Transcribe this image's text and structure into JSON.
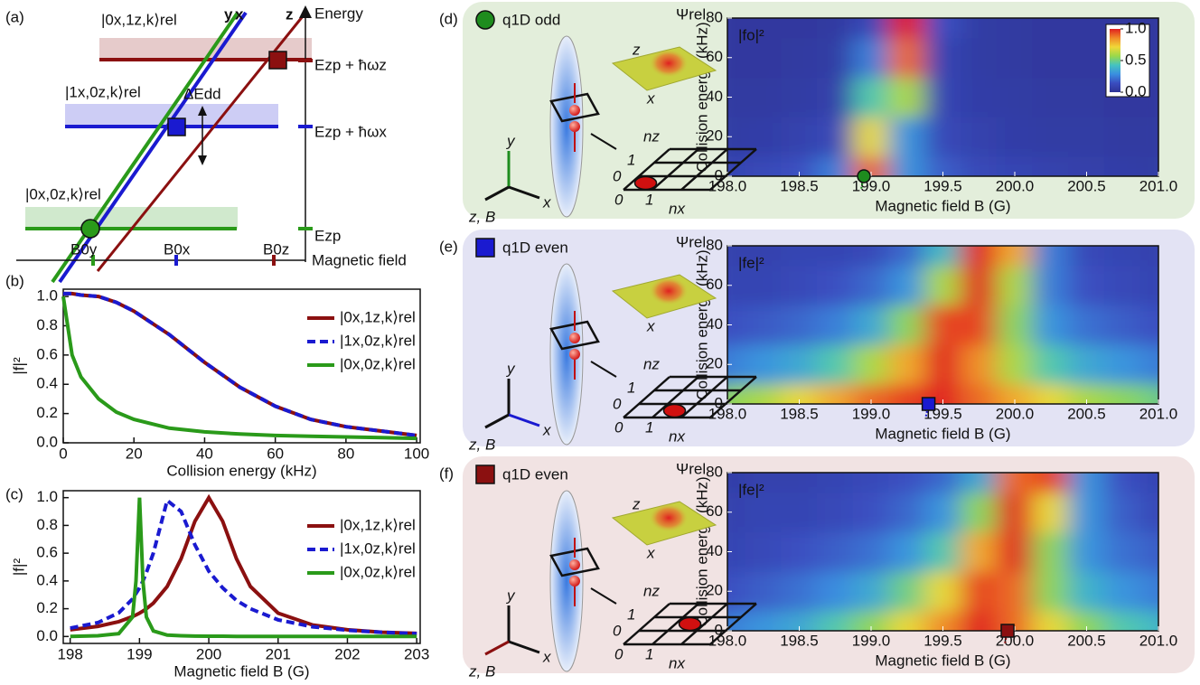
{
  "panel_a": {
    "label": "(a)",
    "axis_y": "Energy",
    "axis_x": "Magnetic field",
    "line_labels": [
      "y",
      "x",
      "z"
    ],
    "states": [
      "|0x,1z,k⟩rel",
      "|1x,0z,k⟩rel",
      "|0x,0z,k⟩rel"
    ],
    "levels": [
      "Ezp + ħωz",
      "Ezp + ħωx",
      "Ezp"
    ],
    "gap": "ΔEdd",
    "fields": [
      "B0y",
      "B0x",
      "B0z"
    ]
  },
  "chart_data": [
    {
      "type": "line",
      "panel": "(b)",
      "xlabel": "Collision energy (kHz)",
      "ylabel": "|f|²",
      "x": [
        0,
        2.5,
        5,
        10,
        15,
        20,
        30,
        40,
        50,
        60,
        70,
        80,
        90,
        100
      ],
      "series": [
        {
          "name": "|0x,1z,k⟩rel",
          "color": "#8b1010",
          "style": "solid",
          "values": [
            1.02,
            1.02,
            1.01,
            1.0,
            0.96,
            0.9,
            0.74,
            0.55,
            0.38,
            0.25,
            0.16,
            0.11,
            0.08,
            0.05
          ]
        },
        {
          "name": "|1x,0z,k⟩rel",
          "color": "#1a1ad0",
          "style": "dashed",
          "values": [
            1.02,
            1.02,
            1.01,
            1.0,
            0.96,
            0.9,
            0.74,
            0.55,
            0.38,
            0.25,
            0.16,
            0.11,
            0.08,
            0.05
          ]
        },
        {
          "name": "|0x,0z,k⟩rel",
          "color": "#2a9a1a",
          "style": "solid",
          "values": [
            1.0,
            0.6,
            0.45,
            0.3,
            0.21,
            0.16,
            0.1,
            0.075,
            0.06,
            0.05,
            0.045,
            0.04,
            0.035,
            0.03
          ]
        }
      ],
      "xlim": [
        0,
        101
      ],
      "xticks": [
        0,
        20,
        40,
        60,
        80,
        100
      ],
      "ylim": [
        0,
        1.05
      ],
      "yticks": [
        {
          "value": 0,
          "label": "0.0"
        },
        {
          "value": 0.2,
          "label": "0.2"
        },
        {
          "value": 0.4,
          "label": "0.4"
        },
        {
          "value": 0.6,
          "label": "0.6"
        },
        {
          "value": 0.8,
          "label": "0.8"
        },
        {
          "value": 1,
          "label": "1.0"
        }
      ]
    },
    {
      "type": "line",
      "panel": "(c)",
      "xlabel": "Magnetic field B (G)",
      "ylabel": "|f|²",
      "x": [
        198,
        198.4,
        198.7,
        198.9,
        198.95,
        199,
        199.05,
        199.1,
        199.2,
        199.4,
        199.6,
        199.8,
        200,
        200.2,
        200.4,
        200.6,
        201,
        201.5,
        202,
        202.5,
        203
      ],
      "series": [
        {
          "name": "|0x,1z,k⟩rel",
          "color": "#8b1010",
          "style": "solid",
          "values": [
            0.048,
            0.073,
            0.107,
            0.143,
            0.155,
            0.168,
            0.183,
            0.2,
            0.24,
            0.36,
            0.56,
            0.83,
            1.0,
            0.83,
            0.56,
            0.36,
            0.168,
            0.083,
            0.048,
            0.031,
            0.022
          ]
        },
        {
          "name": "|1x,0z,k⟩rel",
          "color": "#1a1ad0",
          "style": "dashed",
          "values": [
            0.06,
            0.1,
            0.17,
            0.27,
            0.31,
            0.35,
            0.4,
            0.46,
            0.6,
            0.98,
            0.9,
            0.66,
            0.47,
            0.35,
            0.26,
            0.2,
            0.12,
            0.07,
            0.045,
            0.03,
            0.02
          ]
        },
        {
          "name": "|0x,0z,k⟩rel",
          "color": "#2a9a1a",
          "style": "solid",
          "values": [
            0.0,
            0.005,
            0.02,
            0.14,
            0.4,
            1.0,
            0.4,
            0.14,
            0.04,
            0.01,
            0.005,
            0.003,
            0.002,
            0.002,
            0.001,
            0.001,
            0.0,
            0.0,
            0.0,
            0.0,
            0.0
          ]
        }
      ],
      "xlim": [
        197.9,
        203.05
      ],
      "xticks": [
        198,
        199,
        200,
        201,
        202,
        203
      ],
      "ylim": [
        -0.05,
        1.05
      ],
      "yticks": [
        {
          "value": 0,
          "label": "0.0"
        },
        {
          "value": 0.2,
          "label": "0.2"
        },
        {
          "value": 0.4,
          "label": "0.4"
        },
        {
          "value": 0.6,
          "label": "0.6"
        },
        {
          "value": 0.8,
          "label": "0.8"
        },
        {
          "value": 1,
          "label": "1.0"
        }
      ]
    },
    {
      "type": "heatmap",
      "panel": "(d)",
      "title": "q1D odd",
      "label": "|fo|²",
      "xlabel": "Magnetic field B (G)",
      "ylabel": "Collision energy (kHz)",
      "x": [
        198,
        198.25,
        198.5,
        198.75,
        199,
        199.25,
        199.5,
        199.75,
        200,
        200.25,
        200.5,
        200.75,
        201
      ],
      "y": [
        0,
        20,
        40,
        60,
        80
      ],
      "values": [
        [
          0.1,
          0.12,
          0.15,
          0.25,
          0.9,
          0.3,
          0.18,
          0.12,
          0.1,
          0.08,
          0.07,
          0.06,
          0.05
        ],
        [
          0.05,
          0.06,
          0.08,
          0.12,
          0.7,
          0.3,
          0.12,
          0.08,
          0.06,
          0.05,
          0.05,
          0.04,
          0.04
        ],
        [
          0.04,
          0.04,
          0.05,
          0.07,
          0.45,
          0.6,
          0.1,
          0.06,
          0.05,
          0.04,
          0.04,
          0.03,
          0.03
        ],
        [
          0.03,
          0.03,
          0.04,
          0.05,
          0.25,
          0.9,
          0.1,
          0.05,
          0.04,
          0.03,
          0.03,
          0.03,
          0.03
        ],
        [
          0.03,
          0.03,
          0.03,
          0.04,
          0.12,
          1.0,
          0.15,
          0.05,
          0.04,
          0.03,
          0.03,
          0.03,
          0.03
        ]
      ],
      "xlim": [
        198,
        201
      ],
      "ylim": [
        0,
        80
      ],
      "xticks": [
        {
          "value": 198,
          "label": "198.0"
        },
        {
          "value": 198.5,
          "label": "198.5"
        },
        {
          "value": 199,
          "label": "199.0"
        },
        {
          "value": 199.5,
          "label": "199.5"
        },
        {
          "value": 200,
          "label": "200.0"
        },
        {
          "value": 200.5,
          "label": "200.5"
        },
        {
          "value": 201,
          "label": "201.0"
        }
      ],
      "yticks": [
        0,
        20,
        40,
        60,
        80
      ],
      "colormap": [
        "#2e3396",
        "#3a4dbf",
        "#3a8fe0",
        "#45c4c0",
        "#9ad84a",
        "#f0d838",
        "#f08a28",
        "#e02020"
      ],
      "colorbar_ticks": [
        {
          "value": 0,
          "label": "0.0"
        },
        {
          "value": 0.5,
          "label": "0.5"
        },
        {
          "value": 1,
          "label": "1.0"
        }
      ],
      "marker": {
        "x": 198.95,
        "shape": "circle",
        "color": "#1e8c1e"
      },
      "background": "#e3eedb",
      "schematic": {
        "psi": "Ψrel",
        "surface_axes": [
          "z",
          "x"
        ],
        "frame_axes": [
          "y",
          "x",
          "z, B"
        ],
        "frame_colors": [
          "#1e8c1e",
          "#111",
          "#111"
        ],
        "grid_axes": [
          "nz",
          "nx"
        ],
        "grid_ticks": [
          "0",
          "1",
          "0",
          "1"
        ]
      }
    },
    {
      "type": "heatmap",
      "panel": "(e)",
      "title": "q1D even",
      "label": "|fe|²",
      "xlabel": "Magnetic field B (G)",
      "ylabel": "Collision energy (kHz)",
      "x": [
        198,
        198.25,
        198.5,
        198.75,
        199,
        199.25,
        199.5,
        199.75,
        200,
        200.25,
        200.5,
        200.75,
        201
      ],
      "y": [
        0,
        20,
        40,
        60,
        80
      ],
      "values": [
        [
          0.55,
          0.6,
          0.7,
          0.8,
          0.9,
          0.95,
          1.0,
          0.9,
          0.8,
          0.7,
          0.6,
          0.55,
          0.5
        ],
        [
          0.25,
          0.3,
          0.35,
          0.45,
          0.6,
          0.8,
          1.0,
          0.85,
          0.6,
          0.45,
          0.35,
          0.3,
          0.25
        ],
        [
          0.15,
          0.17,
          0.2,
          0.25,
          0.35,
          0.55,
          0.95,
          0.95,
          0.55,
          0.3,
          0.22,
          0.18,
          0.15
        ],
        [
          0.1,
          0.1,
          0.12,
          0.15,
          0.2,
          0.3,
          0.6,
          1.0,
          0.6,
          0.25,
          0.15,
          0.12,
          0.1
        ],
        [
          0.08,
          0.08,
          0.1,
          0.1,
          0.12,
          0.2,
          0.4,
          1.0,
          0.8,
          0.25,
          0.12,
          0.1,
          0.08
        ]
      ],
      "xlim": [
        198,
        201
      ],
      "ylim": [
        0,
        80
      ],
      "xticks": [
        {
          "value": 198,
          "label": "198.0"
        },
        {
          "value": 198.5,
          "label": "198.5"
        },
        {
          "value": 199,
          "label": "199.0"
        },
        {
          "value": 199.5,
          "label": "199.5"
        },
        {
          "value": 200,
          "label": "200.0"
        },
        {
          "value": 200.5,
          "label": "200.5"
        },
        {
          "value": 201,
          "label": "201.0"
        }
      ],
      "yticks": [
        0,
        20,
        40,
        60,
        80
      ],
      "colormap": [
        "#2e3396",
        "#3a4dbf",
        "#3a8fe0",
        "#45c4c0",
        "#9ad84a",
        "#f0d838",
        "#f08a28",
        "#e02020"
      ],
      "marker": {
        "x": 199.4,
        "shape": "square",
        "color": "#1a1ad0"
      },
      "background": "#e3e3f4",
      "schematic": {
        "psi": "Ψrel",
        "surface_axes": [
          "x"
        ],
        "frame_axes": [
          "y",
          "x",
          "z, B"
        ],
        "frame_colors": [
          "#111",
          "#1a1ad0",
          "#111"
        ],
        "grid_axes": [
          "nz",
          "nx"
        ],
        "grid_ticks": [
          "0",
          "1",
          "0",
          "1"
        ]
      }
    },
    {
      "type": "heatmap",
      "panel": "(f)",
      "title": "q1D even",
      "label": "|fe|²",
      "xlabel": "Magnetic field B (G)",
      "ylabel": "Collision energy (kHz)",
      "x": [
        198,
        198.25,
        198.5,
        198.75,
        199,
        199.25,
        199.5,
        199.75,
        200,
        200.25,
        200.5,
        200.75,
        201
      ],
      "y": [
        0,
        20,
        40,
        60,
        80
      ],
      "values": [
        [
          0.25,
          0.3,
          0.35,
          0.45,
          0.55,
          0.7,
          0.85,
          1.0,
          0.9,
          0.7,
          0.55,
          0.45,
          0.4
        ],
        [
          0.15,
          0.18,
          0.22,
          0.28,
          0.35,
          0.5,
          0.7,
          0.95,
          0.9,
          0.55,
          0.38,
          0.3,
          0.25
        ],
        [
          0.1,
          0.12,
          0.15,
          0.18,
          0.22,
          0.3,
          0.45,
          0.8,
          1.0,
          0.55,
          0.3,
          0.22,
          0.18
        ],
        [
          0.08,
          0.1,
          0.1,
          0.12,
          0.15,
          0.2,
          0.3,
          0.55,
          1.0,
          0.7,
          0.3,
          0.18,
          0.12
        ],
        [
          0.06,
          0.08,
          0.08,
          0.1,
          0.12,
          0.15,
          0.2,
          0.35,
          0.9,
          0.95,
          0.3,
          0.15,
          0.1
        ]
      ],
      "xlim": [
        198,
        201
      ],
      "ylim": [
        0,
        80
      ],
      "xticks": [
        {
          "value": 198,
          "label": "198.0"
        },
        {
          "value": 198.5,
          "label": "198.5"
        },
        {
          "value": 199,
          "label": "199.0"
        },
        {
          "value": 199.5,
          "label": "199.5"
        },
        {
          "value": 200,
          "label": "200.0"
        },
        {
          "value": 200.5,
          "label": "200.5"
        },
        {
          "value": 201,
          "label": "201.0"
        }
      ],
      "yticks": [
        0,
        20,
        40,
        60,
        80
      ],
      "colormap": [
        "#2e3396",
        "#3a4dbf",
        "#3a8fe0",
        "#45c4c0",
        "#9ad84a",
        "#f0d838",
        "#f08a28",
        "#e02020"
      ],
      "marker": {
        "x": 199.95,
        "shape": "square",
        "color": "#8b1010"
      },
      "background": "#f1e3e3",
      "schematic": {
        "psi": "Ψrel",
        "surface_axes": [
          "z",
          "x"
        ],
        "frame_axes": [
          "y",
          "x",
          "z, B"
        ],
        "frame_colors": [
          "#111",
          "#111",
          "#8b1010"
        ],
        "grid_axes": [
          "nz",
          "nx"
        ],
        "grid_ticks": [
          "0",
          "1",
          "0",
          "1"
        ]
      }
    }
  ]
}
